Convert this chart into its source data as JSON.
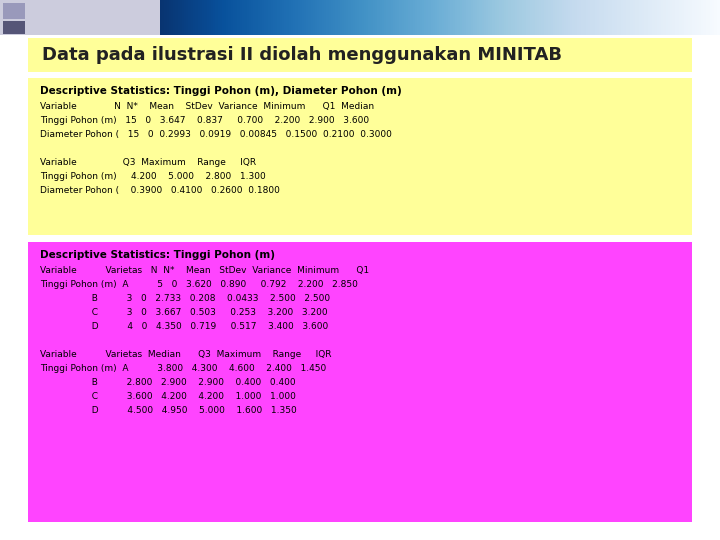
{
  "title": "Data pada ilustrasi II diolah menggunakan MINITAB",
  "title_fontsize": 13,
  "title_color": "#222222",
  "title_bg": "#FFFF99",
  "bg_top": "#FFFF99",
  "bg_bottom": "#FF44FF",
  "slide_bg": "#FFFFFF",
  "block1_title": "Descriptive Statistics: Tinggi Pohon (m), Diameter Pohon (m)",
  "block1_lines": [
    "Variable             N  N*    Mean    StDev  Variance  Minimum      Q1  Median",
    "Tinggi Pohon (m)   15   0   3.647    0.837     0.700    2.200   2.900   3.600",
    "Diameter Pohon (   15   0  0.2993   0.0919   0.00845   0.1500  0.2100  0.3000",
    "",
    "Variable                Q3  Maximum    Range     IQR",
    "Tinggi Pohon (m)     4.200    5.000    2.800   1.300",
    "Diameter Pohon (    0.3900   0.4100   0.2600  0.1800"
  ],
  "block2_title": "Descriptive Statistics: Tinggi Pohon (m)",
  "block2_lines": [
    "Variable          Varietas   N  N*    Mean   StDev  Variance  Minimum      Q1",
    "Tinggi Pohon (m)  A          5   0   3.620   0.890     0.792    2.200   2.850",
    "                  B          3   0   2.733   0.208    0.0433    2.500   2.500",
    "                  C          3   0   3.667   0.503     0.253    3.200   3.200",
    "                  D          4   0   4.350   0.719     0.517    3.400   3.600",
    "",
    "Variable          Varietas  Median      Q3  Maximum    Range     IQR",
    "Tinggi Pohon (m)  A          3.800   4.300    4.600    2.400   1.450",
    "                  B          2.800   2.900    2.900    0.400   0.400",
    "                  C          3.600   4.200    4.200    1.000   1.000",
    "                  D          4.500   4.950    5.000    1.600   1.350"
  ],
  "mono_fontsize": 6.5,
  "block_title_fontsize": 7.5
}
